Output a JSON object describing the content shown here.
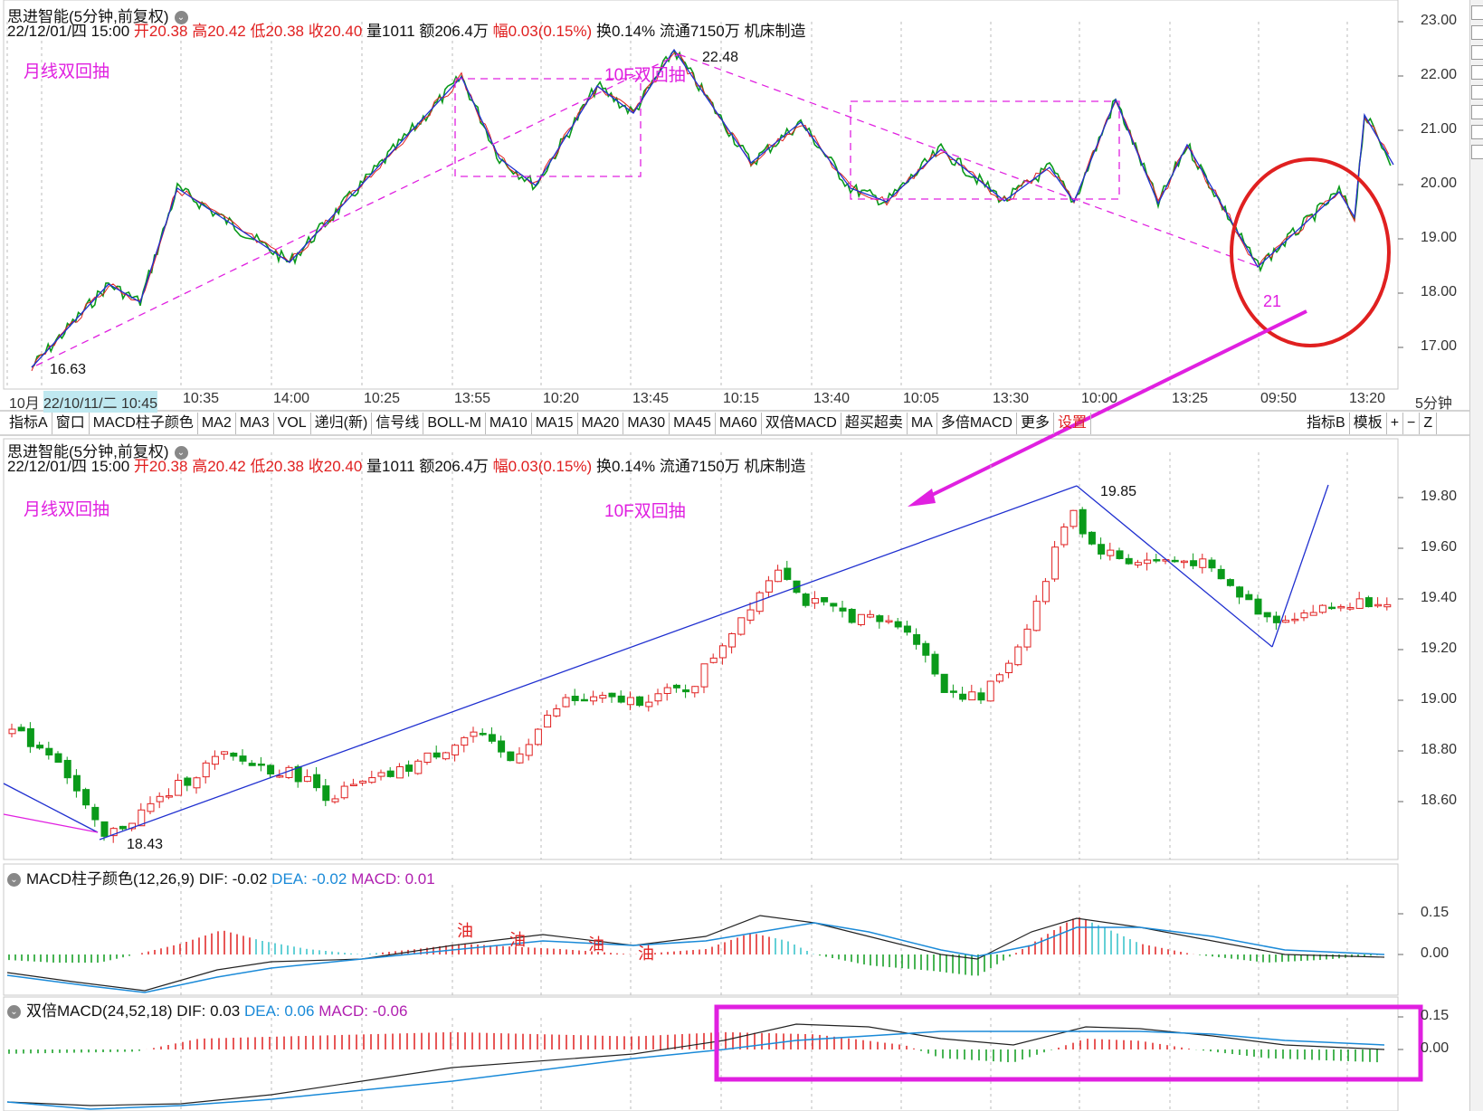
{
  "colors": {
    "up": "#e02020",
    "down": "#0a9a1a",
    "pink": "#e020e0",
    "blue": "#2030d0",
    "dif": "#222222",
    "dea": "#1a8ad8",
    "cyan": "#30c0c8"
  },
  "top_panel": {
    "title": "思进智能(5分钟,前复权)",
    "info_date": "22/12/01/四 15:00",
    "open_label": "开",
    "open": "20.38",
    "high_label": "高",
    "high": "20.42",
    "low_label": "低",
    "low": "20.38",
    "close_label": "收",
    "close": "20.40",
    "vol": "量1011",
    "amount": "额206.4万",
    "chg_label": "幅",
    "chg": "0.03(0.15%)",
    "turnover": "换0.14%",
    "float": "流通7150万",
    "industry": "机床制造",
    "note_left": "月线双回抽",
    "note_mid": "10F双回抽",
    "label_high": "22.48",
    "label_low": "16.63",
    "label_21": "21",
    "y_ticks": [
      "23.00",
      "22.00",
      "21.00",
      "20.00",
      "19.00",
      "18.00",
      "17.00"
    ],
    "x_ticks": [
      "10月",
      "22/10/11/二 10:45",
      "10:35",
      "14:00",
      "10:25",
      "13:55",
      "10:20",
      "13:45",
      "10:15",
      "13:40",
      "10:05",
      "13:30",
      "10:00",
      "13:25",
      "09:50",
      "13:20"
    ],
    "period": "5分钟"
  },
  "toolbar": {
    "items": [
      "指标A",
      "窗口",
      "MACD柱子颜色",
      "MA2",
      "MA3",
      "VOL",
      "递归(新)",
      "信号线",
      "BOLL-M",
      "MA10",
      "MA15",
      "MA20",
      "MA30",
      "MA45",
      "MA60",
      "双倍MACD",
      "超买超卖",
      "MA",
      "多倍MACD",
      "更多",
      "设置"
    ],
    "right_items": [
      "指标B",
      "模板",
      "+",
      "−",
      "Z"
    ]
  },
  "mid_panel": {
    "title": "思进智能(5分钟,前复权)",
    "info_date": "22/12/01/四 15:00",
    "note_left": "月线双回抽",
    "note_mid": "10F双回抽",
    "label_high": "19.85",
    "label_low": "18.43",
    "y_ticks": [
      "19.80",
      "19.60",
      "19.40",
      "19.20",
      "19.00",
      "18.80",
      "18.60"
    ]
  },
  "macd_panel": {
    "title": "MACD柱子颜色(12,26,9)",
    "dif": "DIF: -0.02",
    "dea": "DEA: -0.02",
    "macd": "MACD: 0.01",
    "y_ticks": [
      "0.15",
      "0.00"
    ],
    "oil_char": "油"
  },
  "dmacd_panel": {
    "title": "双倍MACD(24,52,18)",
    "dif": "DIF: 0.03",
    "dea": "DEA: 0.06",
    "macd": "MACD: -0.06",
    "y_ticks": [
      "0.15",
      "0.00"
    ]
  }
}
